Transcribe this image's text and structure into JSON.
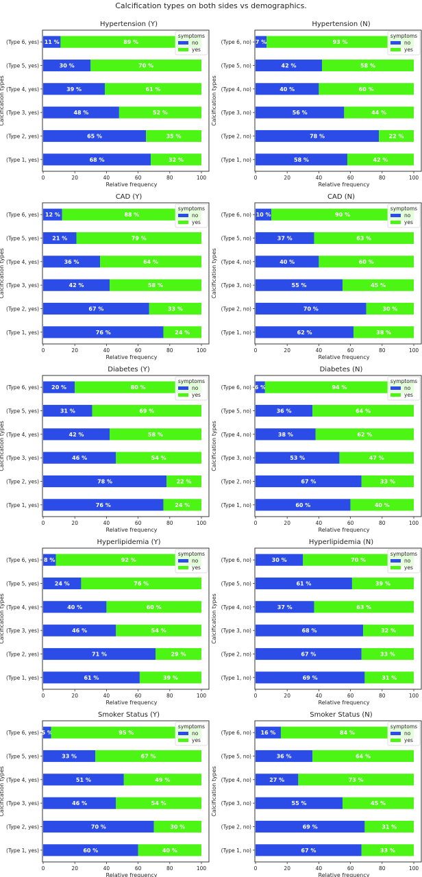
{
  "chart_data": {
    "type": "bar",
    "orientation": "horizontal-stacked",
    "title": "Calcification types on both sides vs demographics.",
    "xlabel": "Relative frequency",
    "ylabel": "Calcification types",
    "xlim": [
      0,
      100
    ],
    "xticks": [
      "0",
      "20",
      "40",
      "60",
      "80",
      "100"
    ],
    "legend": {
      "title": "symptoms",
      "entries": [
        "no",
        "yes"
      ],
      "placement": "top-right"
    },
    "colors": {
      "no": "#2b4ce6",
      "yes": "#4cf514"
    },
    "panels": [
      {
        "title": "Hypertension (Y)",
        "categories": [
          "(Type 1, yes)",
          "(Type 2, yes)",
          "(Type 3, yes)",
          "(Type 4, yes)",
          "(Type 5, yes)",
          "(Type 6, yes)"
        ],
        "series": [
          {
            "name": "no",
            "values": [
              68,
              65,
              48,
              39,
              30,
              11
            ]
          },
          {
            "name": "yes",
            "values": [
              32,
              35,
              52,
              61,
              70,
              89
            ]
          }
        ]
      },
      {
        "title": "Hypertension (N)",
        "categories": [
          "(Type 1, no)",
          "(Type 2, no)",
          "(Type 3, no)",
          "(Type 4, no)",
          "(Type 5, no)",
          "(Type 6, no)"
        ],
        "series": [
          {
            "name": "no",
            "values": [
              58,
              78,
              56,
              40,
              42,
              7
            ]
          },
          {
            "name": "yes",
            "values": [
              42,
              22,
              44,
              60,
              58,
              93
            ]
          }
        ]
      },
      {
        "title": "CAD (Y)",
        "categories": [
          "(Type 1, yes)",
          "(Type 2, yes)",
          "(Type 3, yes)",
          "(Type 4, yes)",
          "(Type 5, yes)",
          "(Type 6, yes)"
        ],
        "series": [
          {
            "name": "no",
            "values": [
              76,
              67,
              42,
              36,
              21,
              12
            ]
          },
          {
            "name": "yes",
            "values": [
              24,
              33,
              58,
              64,
              79,
              88
            ]
          }
        ]
      },
      {
        "title": "CAD (N)",
        "categories": [
          "(Type 1, no)",
          "(Type 2, no)",
          "(Type 3, no)",
          "(Type 4, no)",
          "(Type 5, no)",
          "(Type 6, no)"
        ],
        "series": [
          {
            "name": "no",
            "values": [
              62,
              70,
              55,
              40,
              37,
              10
            ]
          },
          {
            "name": "yes",
            "values": [
              38,
              30,
              45,
              60,
              63,
              90
            ]
          }
        ]
      },
      {
        "title": "Diabetes (Y)",
        "categories": [
          "(Type 1, yes)",
          "(Type 2, yes)",
          "(Type 3, yes)",
          "(Type 4, yes)",
          "(Type 5, yes)",
          "(Type 6, yes)"
        ],
        "series": [
          {
            "name": "no",
            "values": [
              76,
              78,
              46,
              42,
              31,
              20
            ]
          },
          {
            "name": "yes",
            "values": [
              24,
              22,
              54,
              58,
              69,
              80
            ]
          }
        ]
      },
      {
        "title": "Diabetes (N)",
        "categories": [
          "(Type 1, no)",
          "(Type 2, no)",
          "(Type 3, no)",
          "(Type 4, no)",
          "(Type 5, no)",
          "(Type 6, no)"
        ],
        "series": [
          {
            "name": "no",
            "values": [
              60,
              67,
              53,
              38,
              36,
              6
            ]
          },
          {
            "name": "yes",
            "values": [
              40,
              33,
              47,
              62,
              64,
              94
            ]
          }
        ]
      },
      {
        "title": "Hyperlipidemia (Y)",
        "categories": [
          "(Type 1, yes)",
          "(Type 2, yes)",
          "(Type 3, yes)",
          "(Type 4, yes)",
          "(Type 5, yes)",
          "(Type 6, yes)"
        ],
        "series": [
          {
            "name": "no",
            "values": [
              61,
              71,
              46,
              40,
              24,
              8
            ]
          },
          {
            "name": "yes",
            "values": [
              39,
              29,
              54,
              60,
              76,
              92
            ]
          }
        ]
      },
      {
        "title": "Hyperlipidemia (N)",
        "categories": [
          "(Type 1, no)",
          "(Type 2, no)",
          "(Type 3, no)",
          "(Type 4, no)",
          "(Type 5, no)",
          "(Type 6, no)"
        ],
        "series": [
          {
            "name": "no",
            "values": [
              69,
              67,
              68,
              37,
              61,
              30
            ]
          },
          {
            "name": "yes",
            "values": [
              31,
              33,
              32,
              63,
              39,
              70
            ]
          }
        ]
      },
      {
        "title": "Smoker Status (Y)",
        "categories": [
          "(Type 1, yes)",
          "(Type 2, yes)",
          "(Type 3, yes)",
          "(Type 4, yes)",
          "(Type 5, yes)",
          "(Type 6, yes)"
        ],
        "series": [
          {
            "name": "no",
            "values": [
              60,
              70,
              46,
              51,
              33,
              5
            ]
          },
          {
            "name": "yes",
            "values": [
              40,
              30,
              54,
              49,
              67,
              95
            ]
          }
        ]
      },
      {
        "title": "Smoker Status (N)",
        "categories": [
          "(Type 1, no)",
          "(Type 2, no)",
          "(Type 3, no)",
          "(Type 4, no)",
          "(Type 5, no)",
          "(Type 6, no)"
        ],
        "series": [
          {
            "name": "no",
            "values": [
              67,
              69,
              55,
              27,
              36,
              16
            ]
          },
          {
            "name": "yes",
            "values": [
              33,
              31,
              45,
              73,
              64,
              84
            ]
          }
        ]
      }
    ]
  }
}
